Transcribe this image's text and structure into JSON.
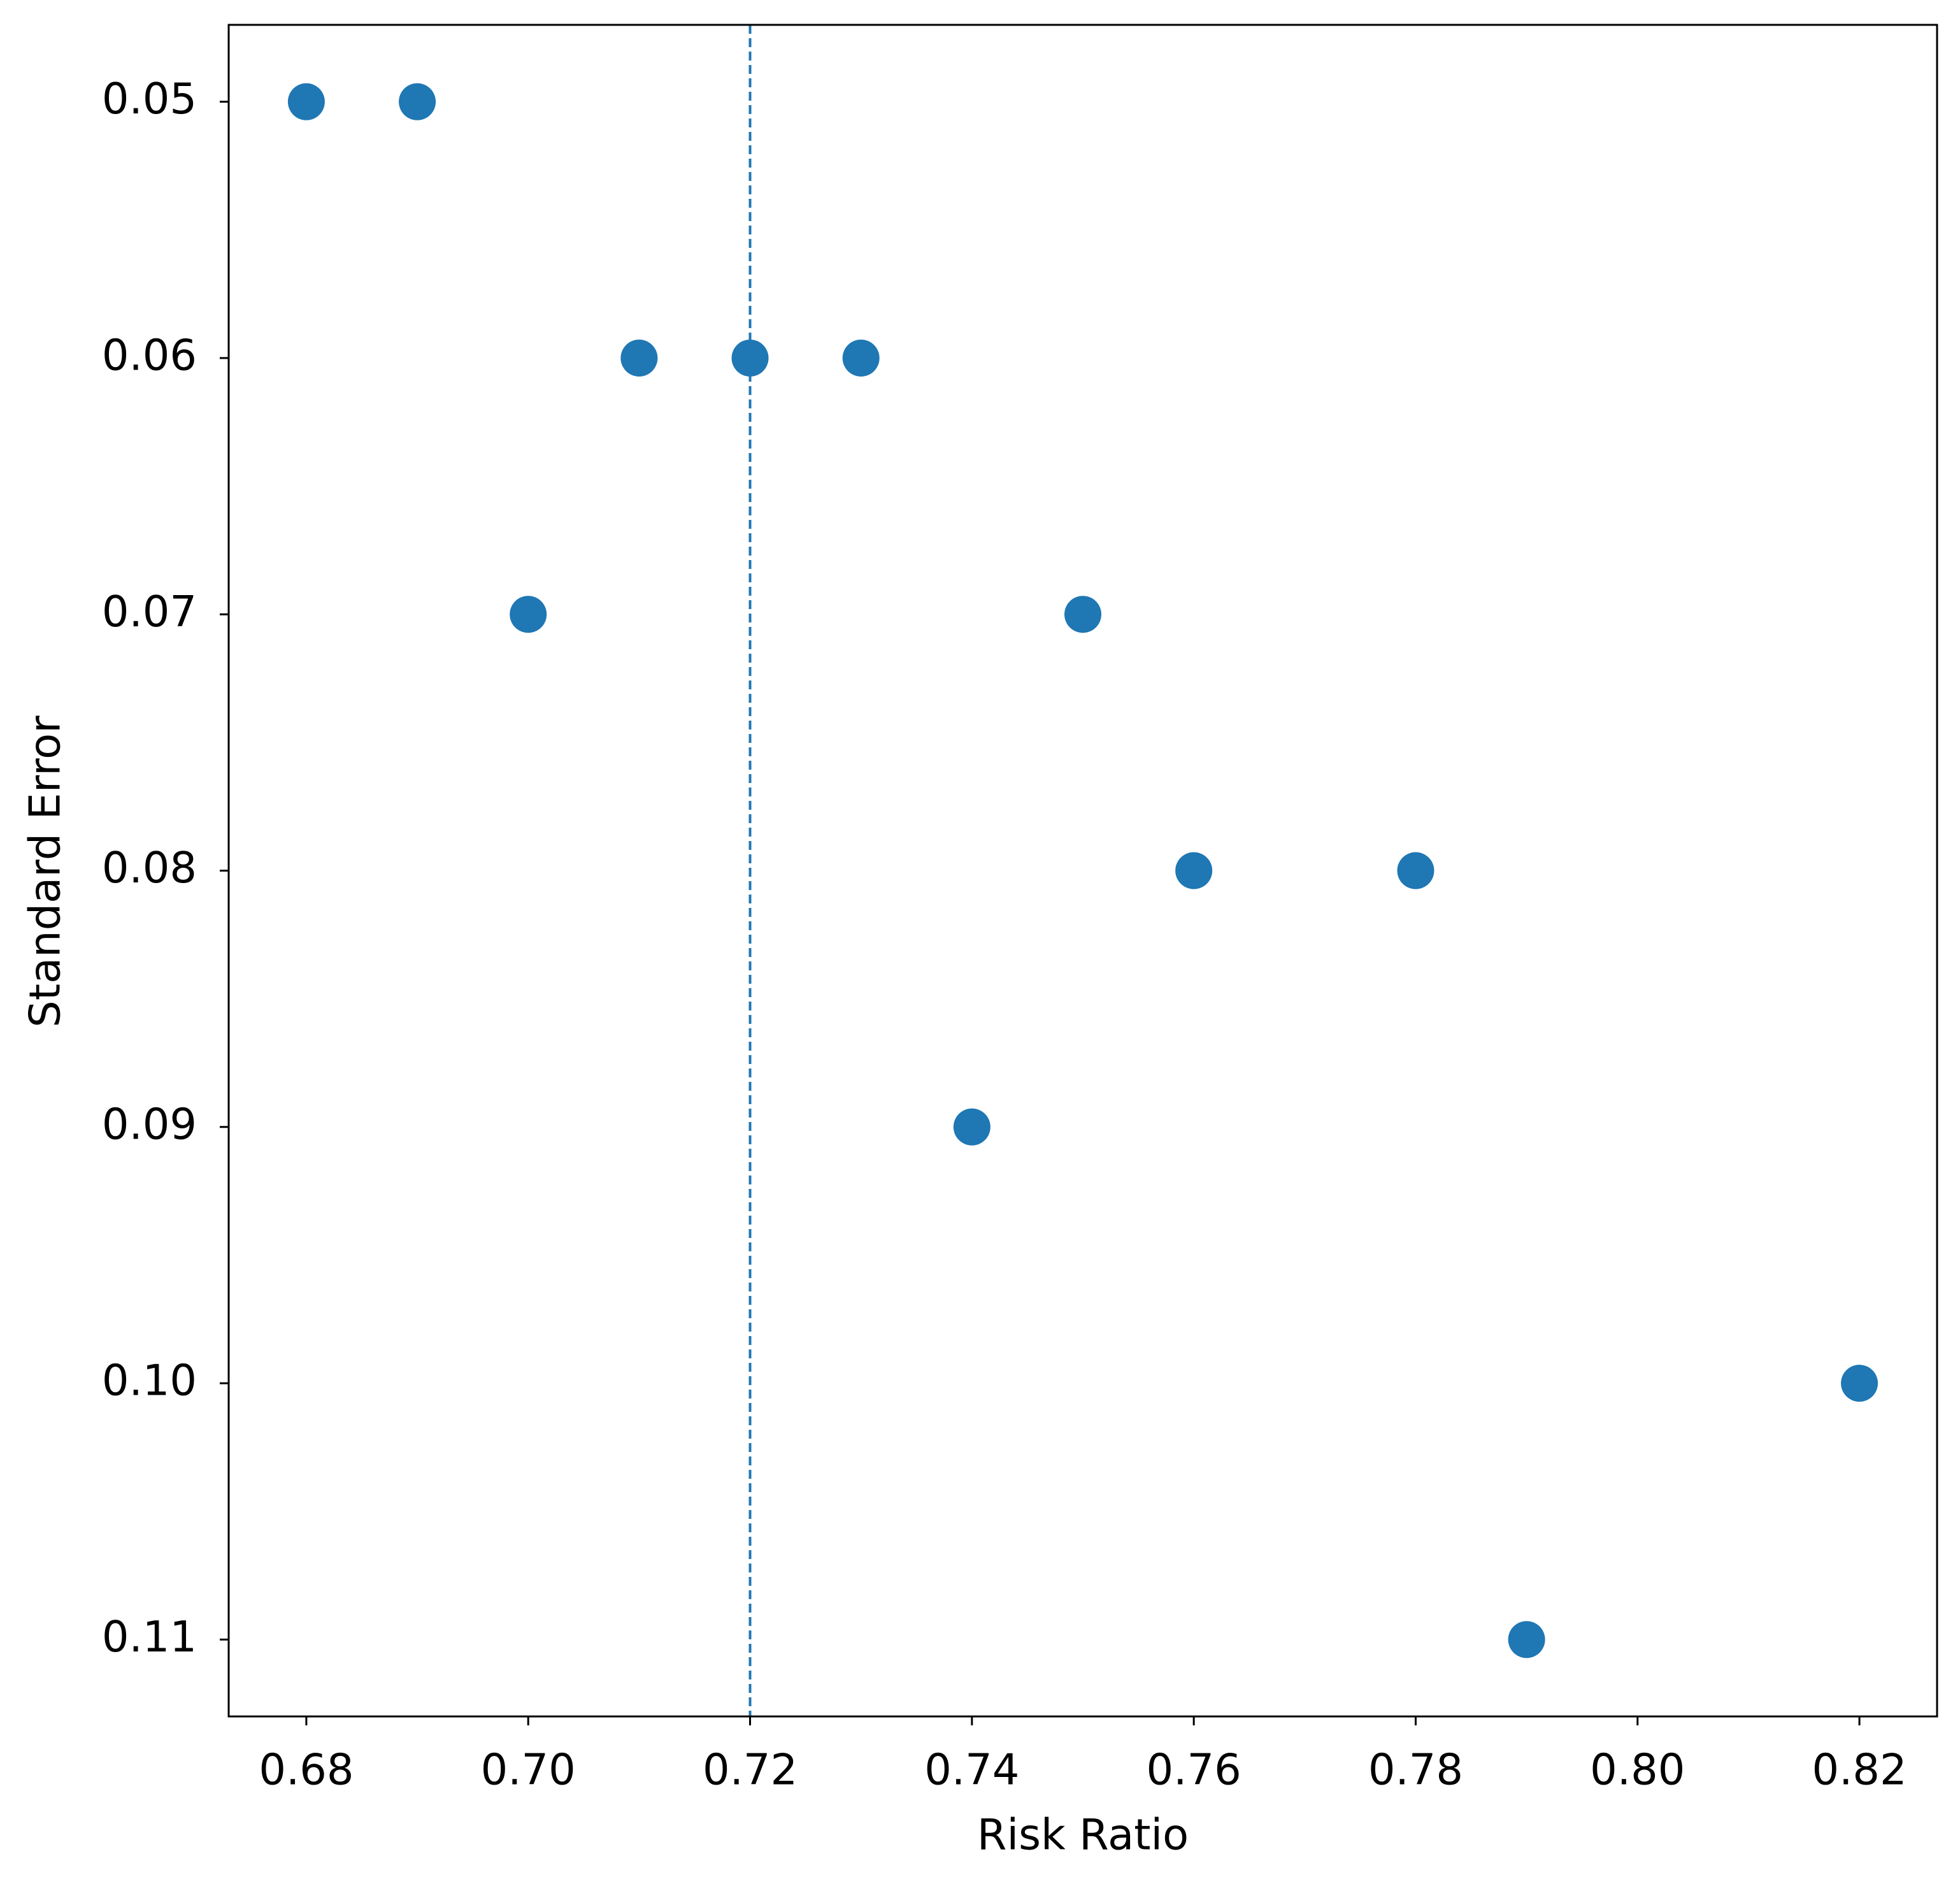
{
  "chart_data": {
    "type": "scatter",
    "x_label": "Risk Ratio",
    "y_label": "Standard Error",
    "series": [
      {
        "color": "#1f77b4",
        "x": [
          0.68,
          0.69,
          0.71,
          0.72,
          0.73,
          0.7,
          0.75,
          0.76,
          0.78,
          0.74,
          0.82,
          0.79
        ],
        "values": [
          0.05,
          0.05,
          0.06,
          0.06,
          0.06,
          0.07,
          0.07,
          0.08,
          0.08,
          0.09,
          0.1,
          0.11
        ]
      }
    ],
    "reference_line": {
      "x": 0.72,
      "color": "#1f77b4",
      "style": "dashed"
    },
    "xlim": [
      0.673,
      0.827
    ],
    "xticks": [
      0.68,
      {
        "value": 0.7,
        "label": "0.70"
      },
      0.72,
      0.74,
      0.76,
      0.78,
      {
        "value": 0.8,
        "label": "0.80"
      },
      0.82
    ],
    "ylim": [
      0.047,
      0.113
    ],
    "y_inverted": true,
    "yticks": [
      0.05,
      0.06,
      0.07,
      0.08,
      0.09,
      {
        "value": 0.1,
        "label": "0.10"
      },
      0.11
    ],
    "grid": false
  }
}
